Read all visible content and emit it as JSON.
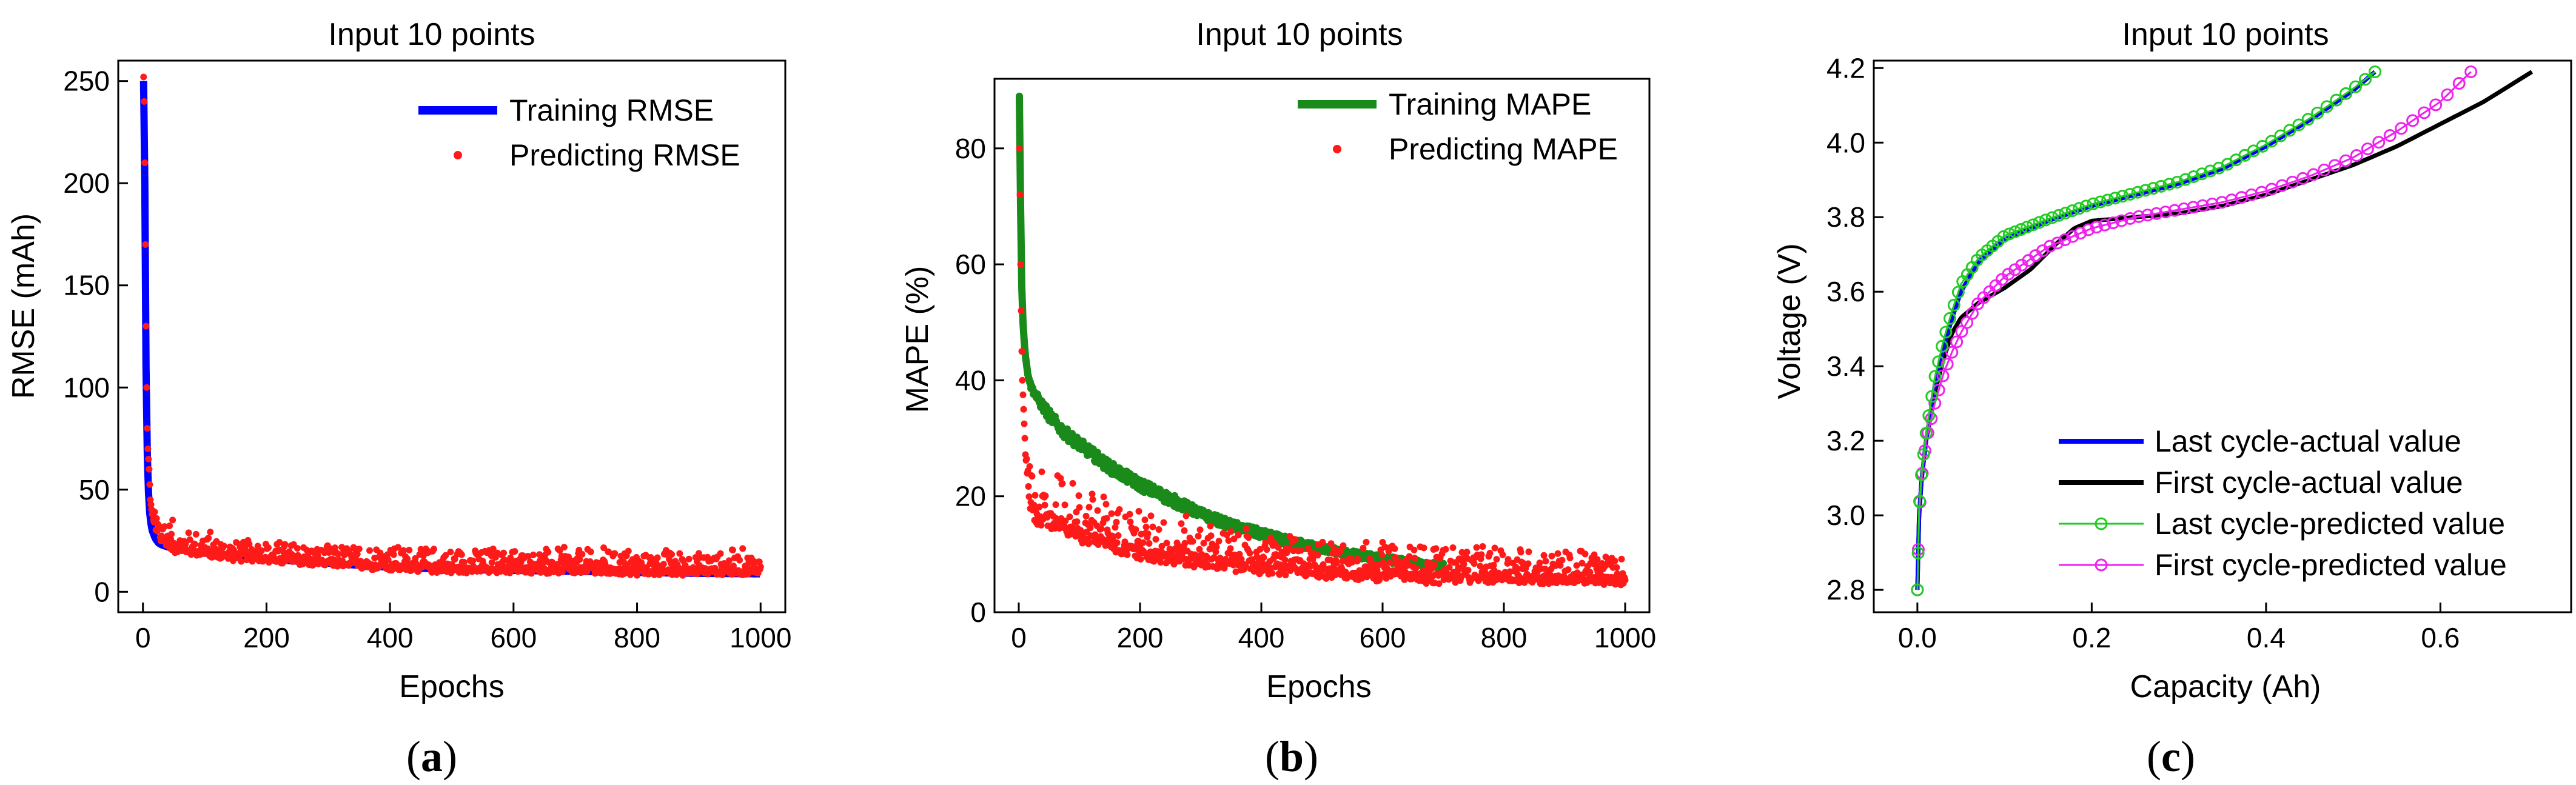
{
  "chart_data": [
    {
      "id": "a",
      "type": "line+scatter",
      "panel_label": "a",
      "title": "Input 10 points",
      "xlabel": "Epochs",
      "ylabel": "RMSE (mAh)",
      "xlim": [
        -40,
        1040
      ],
      "ylim": [
        -10,
        260
      ],
      "xticks": [
        0,
        200,
        400,
        600,
        800,
        1000
      ],
      "yticks": [
        0,
        50,
        100,
        150,
        200,
        250
      ],
      "legend_position": "top-right",
      "series": [
        {
          "name": "Training RMSE",
          "kind": "line",
          "color": "#0000ff",
          "x": [
            1,
            2,
            3,
            4,
            5,
            6,
            8,
            10,
            12,
            15,
            20,
            25,
            30,
            40,
            50,
            75,
            100,
            150,
            200,
            300,
            400,
            500,
            600,
            700,
            800,
            900,
            1000
          ],
          "y": [
            250,
            235,
            200,
            150,
            110,
            80,
            55,
            42,
            35,
            30,
            26,
            24,
            23,
            22,
            21,
            20,
            19,
            17,
            16,
            14,
            12,
            11,
            10.5,
            10,
            9.5,
            9,
            8.8
          ]
        },
        {
          "name": "Predicting RMSE",
          "kind": "scatter",
          "color": "#ff1a1a",
          "x": [
            1,
            2,
            3,
            4,
            5,
            6,
            7,
            8,
            10,
            12,
            15,
            20,
            25,
            30,
            40,
            50,
            75,
            100,
            150,
            200,
            300,
            400,
            500,
            600,
            700,
            800,
            900,
            1000
          ],
          "y": [
            252,
            240,
            210,
            170,
            130,
            100,
            80,
            70,
            60,
            45,
            38,
            32,
            28,
            26,
            24,
            22,
            21,
            20,
            18,
            17,
            15,
            13,
            12,
            12,
            11.5,
            11,
            11,
            11
          ],
          "noise_upper": [
            0,
            0,
            0,
            0,
            0,
            0,
            0,
            0,
            0,
            0,
            0,
            5,
            8,
            10,
            8,
            8,
            6,
            6,
            5,
            5,
            5,
            6,
            6,
            6,
            6,
            6,
            6,
            6
          ],
          "noise_lower": [
            0,
            0,
            0,
            0,
            0,
            0,
            0,
            0,
            0,
            0,
            0,
            2,
            2,
            3,
            3,
            3,
            3,
            3,
            3,
            3,
            3,
            3,
            3,
            3,
            3,
            3,
            3,
            3
          ],
          "n_points": 1000
        }
      ]
    },
    {
      "id": "b",
      "type": "line+scatter",
      "panel_label": "b",
      "title": "Input 10 points",
      "xlabel": "Epochs",
      "ylabel": "MAPE (%)",
      "xlim": [
        -40,
        1040
      ],
      "ylim": [
        0,
        92
      ],
      "xticks": [
        0,
        200,
        400,
        600,
        800,
        1000
      ],
      "yticks": [
        0,
        20,
        40,
        60,
        80
      ],
      "legend_position": "top-right",
      "series": [
        {
          "name": "Training MAPE",
          "kind": "line",
          "color": "#1a8a1a",
          "x": [
            1,
            2,
            3,
            4,
            5,
            7,
            10,
            15,
            20,
            30,
            50,
            75,
            100,
            150,
            200,
            250,
            300,
            350,
            400,
            450,
            500,
            550,
            600,
            650,
            700
          ],
          "y": [
            89,
            80,
            70,
            62,
            56,
            50,
            45,
            41,
            39,
            37,
            34,
            31,
            29,
            25,
            22,
            19.5,
            17,
            15,
            13.5,
            12,
            11,
            10,
            9.2,
            8.6,
            8
          ],
          "noise_upper": [
            0,
            0,
            0,
            0,
            0,
            0,
            0,
            0,
            0.5,
            0.8,
            1,
            1,
            1,
            1,
            1,
            1,
            0.8,
            0.8,
            0.8,
            0.8,
            0.6,
            0.6,
            0.6,
            0.5,
            0.5
          ],
          "noise_lower": [
            0,
            0,
            0,
            0,
            0,
            0,
            0,
            0,
            0.5,
            0.8,
            1,
            1,
            1,
            1,
            1,
            1,
            0.8,
            0.8,
            0.8,
            0.8,
            0.6,
            0.6,
            0.6,
            0.5,
            0.5
          ]
        },
        {
          "name": "Predicting MAPE",
          "kind": "scatter",
          "color": "#ff1a1a",
          "x": [
            1,
            2,
            3,
            4,
            5,
            6,
            8,
            10,
            12,
            15,
            20,
            30,
            50,
            100,
            200,
            300,
            400,
            500,
            600,
            700,
            800,
            900,
            1000
          ],
          "y": [
            80,
            72,
            60,
            52,
            45,
            40,
            35,
            30,
            26,
            22,
            19,
            17,
            16,
            14,
            11,
            9.5,
            8.5,
            7.8,
            7.2,
            6.8,
            6.5,
            6.2,
            6
          ],
          "noise_upper": [
            0,
            0,
            0,
            0,
            0,
            0,
            0,
            0,
            2,
            3,
            3,
            4,
            5,
            5,
            4,
            4,
            3,
            3,
            3,
            3,
            3,
            3,
            2.5
          ],
          "noise_lower": [
            0,
            0,
            0,
            0,
            0,
            0,
            0,
            0,
            2,
            2,
            2,
            2,
            2,
            2,
            2,
            2,
            2,
            2,
            2,
            2,
            1.5,
            1.5,
            1.5
          ],
          "n_points": 1000
        }
      ]
    },
    {
      "id": "c",
      "type": "line",
      "panel_label": "c",
      "title": "Input 10 points",
      "xlabel": "Capacity (Ah)",
      "ylabel": "Voltage (V)",
      "xlim": [
        -0.05,
        0.75
      ],
      "ylim": [
        2.74,
        4.22
      ],
      "xticks": [
        0.0,
        0.2,
        0.4,
        0.6
      ],
      "yticks": [
        2.8,
        3.0,
        3.2,
        3.4,
        3.6,
        3.8,
        4.0,
        4.2
      ],
      "legend_position": "bottom-right",
      "series": [
        {
          "name": "Last cycle-actual value",
          "kind": "line",
          "color": "#0000ff",
          "x": [
            0,
            0.002,
            0.005,
            0.01,
            0.02,
            0.03,
            0.04,
            0.05,
            0.07,
            0.1,
            0.15,
            0.2,
            0.25,
            0.3,
            0.35,
            0.4,
            0.45,
            0.5,
            0.525
          ],
          "y": [
            2.8,
            3.0,
            3.1,
            3.2,
            3.35,
            3.45,
            3.53,
            3.6,
            3.68,
            3.74,
            3.79,
            3.83,
            3.86,
            3.89,
            3.93,
            3.99,
            4.06,
            4.14,
            4.19
          ]
        },
        {
          "name": "First cycle-actual value",
          "kind": "line",
          "color": "#000000",
          "x": [
            0,
            0.002,
            0.005,
            0.01,
            0.02,
            0.03,
            0.04,
            0.05,
            0.07,
            0.1,
            0.13,
            0.16,
            0.18,
            0.2,
            0.25,
            0.3,
            0.35,
            0.4,
            0.45,
            0.5,
            0.55,
            0.6,
            0.65,
            0.705
          ],
          "y": [
            2.8,
            3.0,
            3.1,
            3.2,
            3.33,
            3.42,
            3.49,
            3.53,
            3.57,
            3.61,
            3.66,
            3.73,
            3.77,
            3.79,
            3.8,
            3.81,
            3.83,
            3.86,
            3.9,
            3.94,
            3.99,
            4.05,
            4.11,
            4.19
          ]
        },
        {
          "name": "Last cycle-predicted value",
          "kind": "line+marker",
          "color": "#22cc22",
          "x": [
            0,
            0.002,
            0.005,
            0.01,
            0.02,
            0.03,
            0.04,
            0.05,
            0.07,
            0.1,
            0.15,
            0.2,
            0.25,
            0.3,
            0.35,
            0.4,
            0.45,
            0.5,
            0.525
          ],
          "y": [
            2.8,
            3.02,
            3.12,
            3.22,
            3.37,
            3.47,
            3.55,
            3.62,
            3.69,
            3.75,
            3.795,
            3.835,
            3.865,
            3.895,
            3.935,
            3.995,
            4.065,
            4.145,
            4.19
          ]
        },
        {
          "name": "First cycle-predicted value",
          "kind": "line+marker",
          "color": "#ee22ee",
          "x": [
            0,
            0.002,
            0.005,
            0.01,
            0.02,
            0.03,
            0.04,
            0.05,
            0.07,
            0.1,
            0.15,
            0.2,
            0.25,
            0.3,
            0.35,
            0.4,
            0.45,
            0.5,
            0.55,
            0.6,
            0.635
          ],
          "y": [
            2.8,
            3.0,
            3.1,
            3.2,
            3.3,
            3.38,
            3.44,
            3.49,
            3.57,
            3.64,
            3.72,
            3.77,
            3.8,
            3.82,
            3.84,
            3.87,
            3.91,
            3.96,
            4.03,
            4.11,
            4.19
          ]
        }
      ]
    }
  ]
}
